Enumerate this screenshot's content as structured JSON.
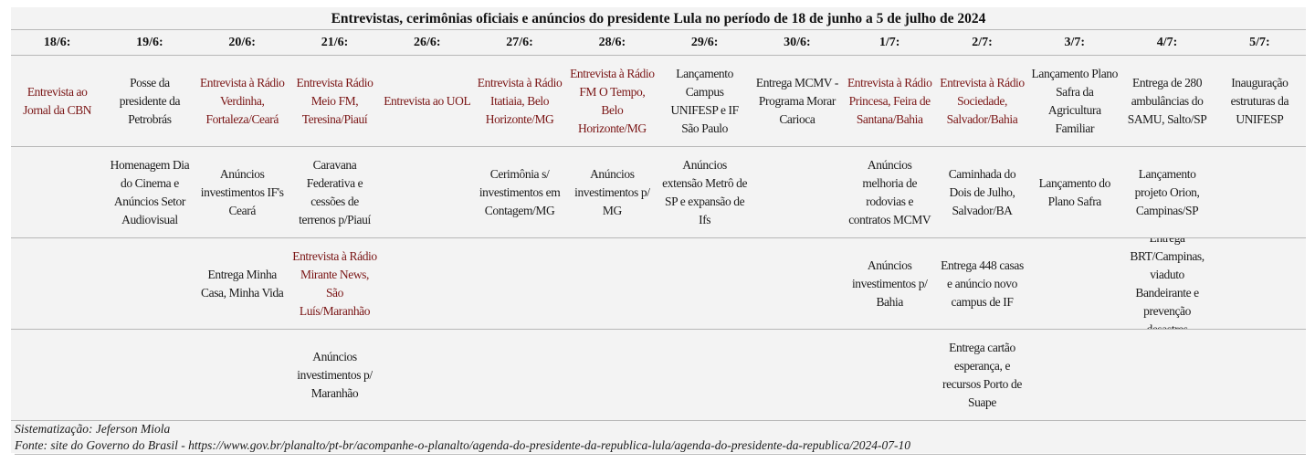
{
  "title": "Entrevistas, cerimônias oficiais e anúncios do presidente Lula no período de 18 de junho a 5 de julho de 2024",
  "dates": [
    "18/6:",
    "19/6:",
    "20/6:",
    "21/6:",
    "26/6:",
    "27/6:",
    "28/6:",
    "29/6:",
    "30/6:",
    "1/7:",
    "2/7:",
    "3/7:",
    "4/7:",
    "5/7:"
  ],
  "colors": {
    "interview": "#7a1515",
    "event": "#1a1a1a"
  },
  "rows": [
    [
      {
        "text": "Entrevista ao Jornal da CBN",
        "type": "interview"
      },
      {
        "text": "Posse da presidente da Petrobrás",
        "type": "event"
      },
      {
        "text": "Entrevista à Rádio Verdinha, Fortaleza/Ceará",
        "type": "interview"
      },
      {
        "text": "Entrevista Rádio Meio FM, Teresina/Piauí",
        "type": "interview"
      },
      {
        "text": "Entrevista ao UOL",
        "type": "interview"
      },
      {
        "text": "Entrevista à Rádio Itatiaia, Belo Horizonte/MG",
        "type": "interview"
      },
      {
        "text": "Entrevista à Rádio FM O Tempo, Belo Horizonte/MG",
        "type": "interview"
      },
      {
        "text": "Lançamento Campus UNIFESP e IF São Paulo",
        "type": "event"
      },
      {
        "text": "Entrega MCMV - Programa Morar Carioca",
        "type": "event"
      },
      {
        "text": "Entrevista à Rádio Princesa, Feira de Santana/Bahia",
        "type": "interview"
      },
      {
        "text": "Entrevista à Rádio Sociedade, Salvador/Bahia",
        "type": "interview"
      },
      {
        "text": "Lançamento Plano Safra da Agricultura Familiar",
        "type": "event"
      },
      {
        "text": "Entrega de 280 ambulâncias do SAMU, Salto/SP",
        "type": "event"
      },
      {
        "text": "Inauguração estruturas da UNIFESP",
        "type": "event"
      }
    ],
    [
      {
        "text": "",
        "type": "event"
      },
      {
        "text": "Homenagem Dia do Cinema e Anúncios Setor Audiovisual",
        "type": "event"
      },
      {
        "text": "Anúncios investimentos IF's Ceará",
        "type": "event"
      },
      {
        "text": "Caravana Federativa e cessões de terrenos p/Piauí",
        "type": "event"
      },
      {
        "text": "",
        "type": "event"
      },
      {
        "text": "Cerimônia s/ investimentos em Contagem/MG",
        "type": "event"
      },
      {
        "text": "Anúncios investimentos p/ MG",
        "type": "event"
      },
      {
        "text": "Anúncios extensão Metrô de SP e expansão de Ifs",
        "type": "event"
      },
      {
        "text": "",
        "type": "event"
      },
      {
        "text": "Anúncios melhoria de rodovias e contratos MCMV",
        "type": "event"
      },
      {
        "text": "Caminhada do Dois de Julho, Salvador/BA",
        "type": "event"
      },
      {
        "text": "Lançamento do Plano Safra",
        "type": "event"
      },
      {
        "text": "Lançamento projeto Orion, Campinas/SP",
        "type": "event"
      },
      {
        "text": "",
        "type": "event"
      }
    ],
    [
      {
        "text": "",
        "type": "event"
      },
      {
        "text": "",
        "type": "event"
      },
      {
        "text": "Entrega Minha Casa, Minha Vida",
        "type": "event"
      },
      {
        "text": "Entrevista à Rádio Mirante News, São Luís/Maranhão",
        "type": "interview"
      },
      {
        "text": "",
        "type": "event"
      },
      {
        "text": "",
        "type": "event"
      },
      {
        "text": "",
        "type": "event"
      },
      {
        "text": "",
        "type": "event"
      },
      {
        "text": "",
        "type": "event"
      },
      {
        "text": "Anúncios investimentos p/ Bahia",
        "type": "event"
      },
      {
        "text": "Entrega 448 casas e anúncio novo campus de IF",
        "type": "event"
      },
      {
        "text": "",
        "type": "event"
      },
      {
        "text": "Entrega BRT/Campinas, viaduto Bandeirante e prevenção desastres",
        "type": "event"
      },
      {
        "text": "",
        "type": "event"
      }
    ],
    [
      {
        "text": "",
        "type": "event"
      },
      {
        "text": "",
        "type": "event"
      },
      {
        "text": "",
        "type": "event"
      },
      {
        "text": "Anúncios investimentos p/ Maranhão",
        "type": "event"
      },
      {
        "text": "",
        "type": "event"
      },
      {
        "text": "",
        "type": "event"
      },
      {
        "text": "",
        "type": "event"
      },
      {
        "text": "",
        "type": "event"
      },
      {
        "text": "",
        "type": "event"
      },
      {
        "text": "",
        "type": "event"
      },
      {
        "text": "Entrega cartão esperança, e recursos Porto de Suape",
        "type": "event"
      },
      {
        "text": "",
        "type": "event"
      },
      {
        "text": "",
        "type": "event"
      },
      {
        "text": "",
        "type": "event"
      }
    ]
  ],
  "footer": {
    "credit": "Sistematização: Jeferson Miola",
    "source": "Fonte: site do Governo do Brasil - https://www.gov.br/planalto/pt-br/acompanhe-o-planalto/agenda-do-presidente-da-republica-lula/agenda-do-presidente-da-republica/2024-07-10"
  }
}
